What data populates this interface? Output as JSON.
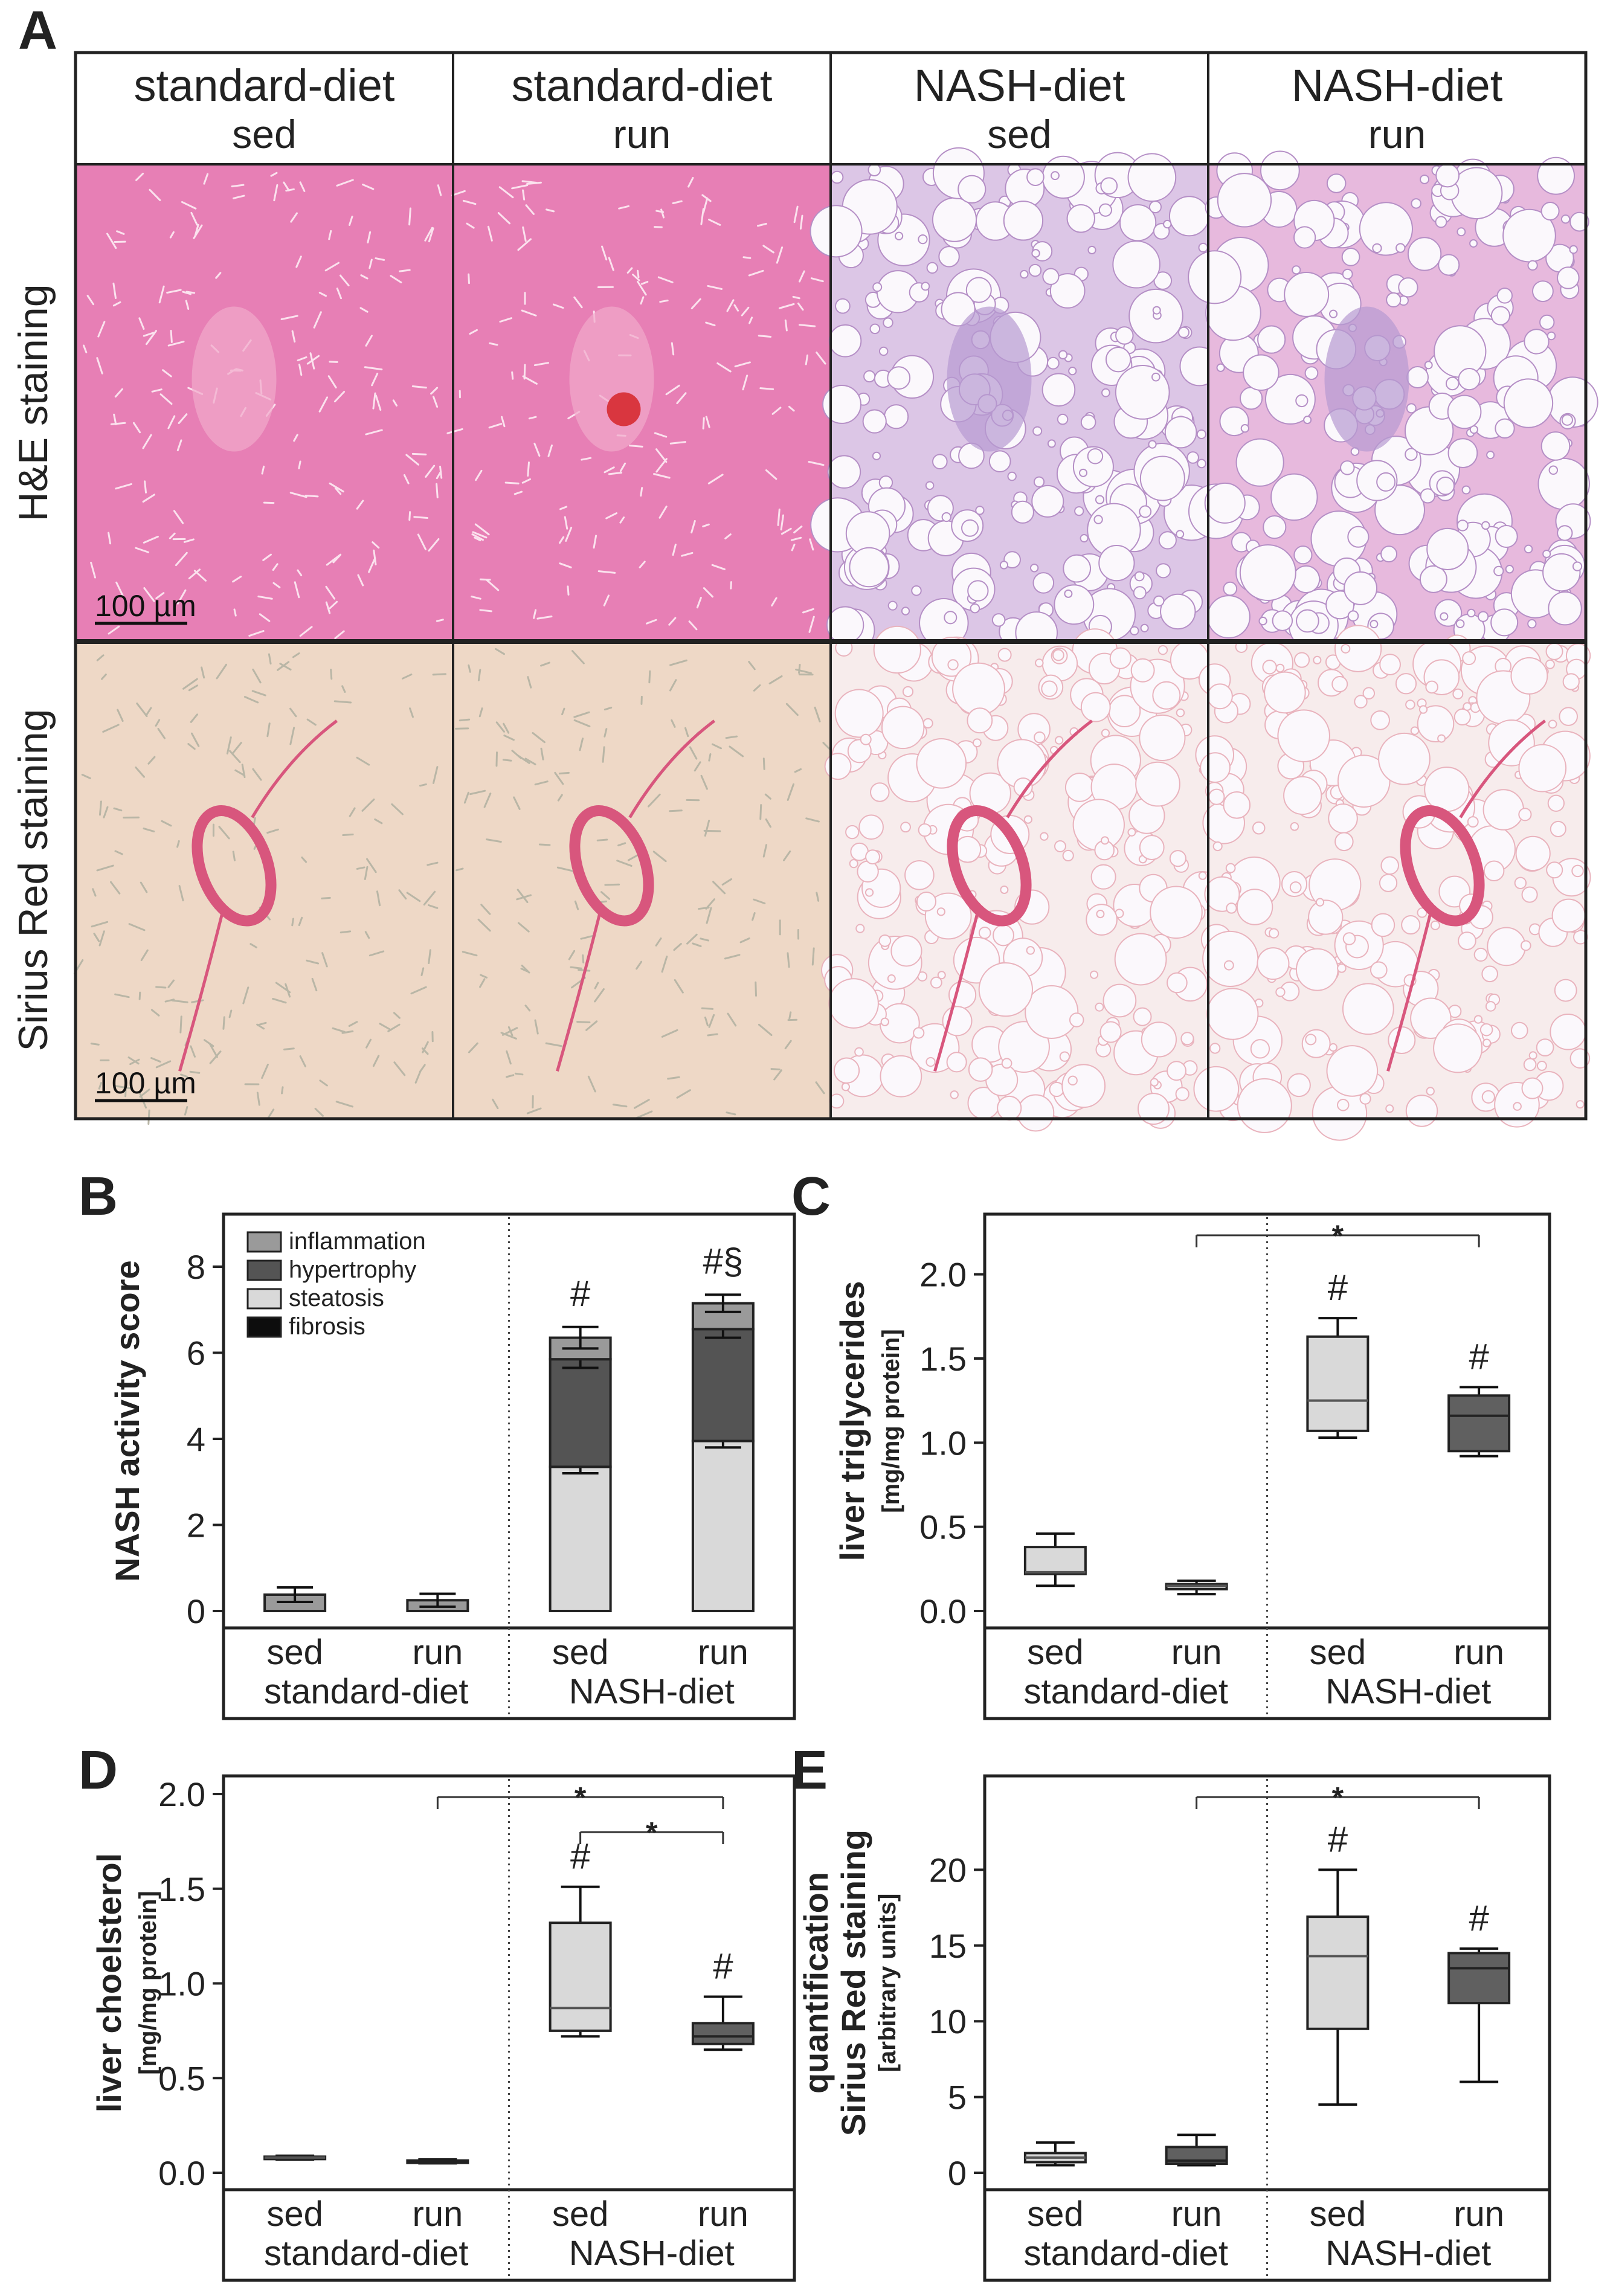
{
  "figure": {
    "panel_letters": {
      "A": "A",
      "B": "B",
      "C": "C",
      "D": "D",
      "E": "E"
    },
    "panel_a": {
      "columns": [
        {
          "diet": "standard-diet",
          "activity": "sed"
        },
        {
          "diet": "standard-diet",
          "activity": "run"
        },
        {
          "diet": "NASH-diet",
          "activity": "sed"
        },
        {
          "diet": "NASH-diet",
          "activity": "run"
        }
      ],
      "rows": [
        "H&E staining",
        "Sirius Red staining"
      ],
      "scale_bar": "100 µm",
      "colors": {
        "he_standard": "#e77fb5",
        "he_nash_sed": "#dcc6e6",
        "he_nash_run": "#e7b9dd",
        "sirius_standard": "#eed8c6",
        "sirius_nash": "#f7ecec",
        "fiber": "#d8567d"
      }
    }
  },
  "chart_data": [
    {
      "panel": "B",
      "type": "bar",
      "stacked": true,
      "categories": [
        "sed",
        "run",
        "sed",
        "run"
      ],
      "groups": [
        "standard-diet",
        "NASH-diet"
      ],
      "ylabel": "NASH activity score",
      "ylim": [
        0,
        8.8
      ],
      "yticks": [
        0,
        2,
        4,
        6,
        8
      ],
      "legend": [
        "inflammation",
        "hypertrophy",
        "steatosis",
        "fibrosis"
      ],
      "legend_colors": {
        "inflammation": "#9a9a9a",
        "hypertrophy": "#545454",
        "steatosis": "#d9d9d9",
        "fibrosis": "#0d0d0d"
      },
      "series": [
        {
          "name": "steatosis",
          "values": [
            0,
            0,
            3.35,
            3.95
          ],
          "errors": [
            0,
            0,
            0.15,
            0.15
          ]
        },
        {
          "name": "hypertrophy",
          "values": [
            0,
            0,
            2.5,
            2.6
          ],
          "errors": [
            0,
            0,
            0.2,
            0.2
          ]
        },
        {
          "name": "inflammation",
          "values": [
            0.38,
            0.25,
            0.5,
            0.6
          ],
          "errors": [
            0.17,
            0.15,
            0.25,
            0.2
          ]
        },
        {
          "name": "fibrosis",
          "values": [
            0,
            0,
            0,
            0
          ],
          "errors": [
            0,
            0,
            0,
            0
          ]
        }
      ],
      "annotations": [
        "",
        "",
        "#",
        "#§"
      ]
    },
    {
      "panel": "C",
      "type": "box",
      "categories": [
        "sed",
        "run",
        "sed",
        "run"
      ],
      "groups": [
        "standard-diet",
        "NASH-diet"
      ],
      "ylabel": "liver triglycerides",
      "ylabel_unit": "[mg/mg protein]",
      "ylim": [
        0,
        2.25
      ],
      "yticks": [
        "0.0",
        "0.5",
        "1.0",
        "1.5",
        "2.0"
      ],
      "boxes": [
        {
          "min": 0.15,
          "q1": 0.22,
          "median": 0.23,
          "q3": 0.38,
          "max": 0.46,
          "fill": "#d9d9d9"
        },
        {
          "min": 0.1,
          "q1": 0.13,
          "median": 0.15,
          "q3": 0.16,
          "max": 0.18,
          "fill": "#d9d9d9"
        },
        {
          "min": 1.03,
          "q1": 1.07,
          "median": 1.25,
          "q3": 1.63,
          "max": 1.74,
          "fill": "#d9d9d9"
        },
        {
          "min": 0.92,
          "q1": 0.95,
          "median": 1.16,
          "q3": 1.28,
          "max": 1.33,
          "fill": "#606060"
        }
      ],
      "annotations": [
        "",
        "",
        "#",
        "#"
      ],
      "significance": [
        {
          "from": 1,
          "to": 3,
          "label": "*"
        }
      ]
    },
    {
      "panel": "D",
      "type": "box",
      "categories": [
        "sed",
        "run",
        "sed",
        "run"
      ],
      "groups": [
        "standard-diet",
        "NASH-diet"
      ],
      "ylabel": "liver choelsterol",
      "ylabel_unit": "[mg/mg protein]",
      "ylim": [
        0,
        2.0
      ],
      "yticks": [
        "0.0",
        "0.5",
        "1.0",
        "1.5",
        "2.0"
      ],
      "boxes": [
        {
          "min": 0.07,
          "q1": 0.075,
          "median": 0.08,
          "q3": 0.085,
          "max": 0.09,
          "fill": "#d9d9d9"
        },
        {
          "min": 0.05,
          "q1": 0.055,
          "median": 0.06,
          "q3": 0.065,
          "max": 0.07,
          "fill": "#606060"
        },
        {
          "min": 0.72,
          "q1": 0.75,
          "median": 0.87,
          "q3": 1.32,
          "max": 1.51,
          "fill": "#d9d9d9"
        },
        {
          "min": 0.65,
          "q1": 0.68,
          "median": 0.72,
          "q3": 0.79,
          "max": 0.93,
          "fill": "#606060"
        }
      ],
      "annotations": [
        "",
        "",
        "#",
        "#"
      ],
      "significance": [
        {
          "from": 1,
          "to": 3,
          "label": "*"
        },
        {
          "from": 2,
          "to": 3,
          "label": "*"
        }
      ]
    },
    {
      "panel": "E",
      "type": "box",
      "categories": [
        "sed",
        "run",
        "sed",
        "run"
      ],
      "groups": [
        "standard-diet",
        "NASH-diet"
      ],
      "ylabel": "quantification\nSirius Red staining",
      "ylabel_unit": "[arbitrary units]",
      "ylim": [
        0,
        25
      ],
      "yticks": [
        "0",
        "5",
        "10",
        "15",
        "20"
      ],
      "boxes": [
        {
          "min": 0.5,
          "q1": 0.7,
          "median": 1.0,
          "q3": 1.3,
          "max": 2.0,
          "fill": "#d9d9d9"
        },
        {
          "min": 0.5,
          "q1": 0.6,
          "median": 0.8,
          "q3": 1.7,
          "max": 2.5,
          "fill": "#606060"
        },
        {
          "min": 4.5,
          "q1": 9.5,
          "median": 14.3,
          "q3": 16.9,
          "max": 20.0,
          "fill": "#d9d9d9"
        },
        {
          "min": 6.0,
          "q1": 11.2,
          "median": 13.5,
          "q3": 14.5,
          "max": 14.8,
          "fill": "#606060"
        }
      ],
      "annotations": [
        "",
        "",
        "#",
        "#"
      ],
      "significance": [
        {
          "from": 1,
          "to": 3,
          "label": "*"
        }
      ]
    }
  ]
}
